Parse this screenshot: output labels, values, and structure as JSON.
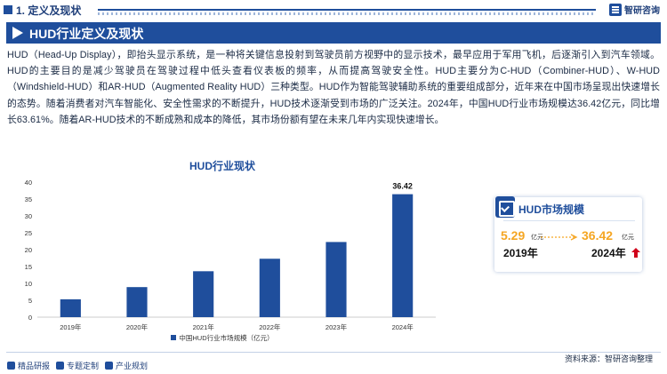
{
  "header": {
    "section_title": "1. 定义及现状",
    "brand_name": "智研咨询"
  },
  "banner": {
    "title": "HUD行业定义及现状"
  },
  "paragraph": "HUD（Head-Up Display），即抬头显示系统，是一种将关键信息投射到驾驶员前方视野中的显示技术，最早应用于军用飞机，后逐渐引入到汽车领域。HUD的主要目的是减少驾驶员在驾驶过程中低头查看仪表板的频率，从而提高驾驶安全性。HUD主要分为C-HUD（Combiner-HUD）、W-HUD（Windshield-HUD）和AR-HUD（Augmented Reality HUD）三种类型。HUD作为智能驾驶辅助系统的重要组成部分，近年来在中国市场呈现出快速增长的态势。随着消费者对汽车智能化、安全性需求的不断提升，HUD技术逐渐受到市场的广泛关注。2024年，中国HUD行业市场规模达36.42亿元，同比增长63.61%。随着AR-HUD技术的不断成熟和成本的降低，其市场份额有望在未来几年内实现快速增长。",
  "chart_data": {
    "type": "bar",
    "title": "HUD行业现状",
    "categories": [
      "2019年",
      "2020年",
      "2021年",
      "2022年",
      "2023年",
      "2024年"
    ],
    "series": [
      {
        "name": "中国HUD行业市场规模（亿元）",
        "values": [
          5.29,
          8.9,
          13.6,
          17.3,
          22.26,
          36.42
        ]
      }
    ],
    "ylim": [
      0,
      40
    ],
    "yticks": [
      "0",
      "5",
      "10",
      "15",
      "20",
      "25",
      "30",
      "35",
      "40"
    ],
    "data_labels": [
      {
        "index": 5,
        "text": "36.42"
      }
    ],
    "grid": false,
    "legend_position": "bottom",
    "bar_color": "#1f4e9c"
  },
  "card": {
    "title": "HUD市场规模",
    "start_value": "5.29",
    "start_unit": "亿元",
    "start_year": "2019年",
    "end_value": "36.42",
    "end_unit": "亿元",
    "end_year": "2024年"
  },
  "footer": {
    "left_items": [
      "精品研报",
      "专题定制",
      "产业规划"
    ],
    "source": "资料来源：智研咨询整理"
  },
  "colors": {
    "primary": "#1f4e9c",
    "highlight": "#f5a623",
    "up_arrow": "#d0021b"
  }
}
